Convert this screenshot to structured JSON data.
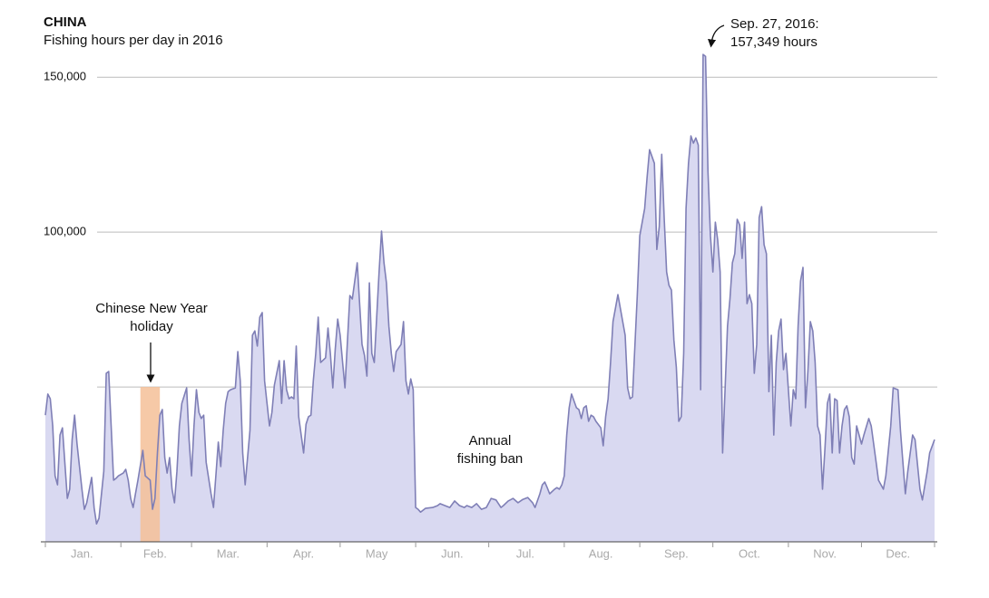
{
  "chart_data": {
    "type": "area",
    "title": "CHINA",
    "subtitle": "Fishing hours per day in 2016",
    "annotations": [
      {
        "lines": [
          "Sep. 27, 2016:",
          "157,349 hours"
        ]
      },
      {
        "lines": [
          "Chinese New Year",
          "holiday"
        ]
      },
      {
        "lines": [
          "Annual",
          "fishing ban"
        ]
      }
    ],
    "highlight": {
      "from": 40,
      "to": 48,
      "color": "#f4bf98"
    },
    "xlim": [
      1,
      366
    ],
    "xticks": [
      {
        "value": 16,
        "label": "Jan."
      },
      {
        "value": 46,
        "label": "Feb."
      },
      {
        "value": 76,
        "label": "Mar."
      },
      {
        "value": 107,
        "label": "Apr."
      },
      {
        "value": 137,
        "label": "May"
      },
      {
        "value": 168,
        "label": "Jun."
      },
      {
        "value": 198,
        "label": "Jul."
      },
      {
        "value": 229,
        "label": "Aug."
      },
      {
        "value": 260,
        "label": "Sep."
      },
      {
        "value": 290,
        "label": "Oct."
      },
      {
        "value": 321,
        "label": "Nov."
      },
      {
        "value": 351,
        "label": "Dec."
      }
    ],
    "minor_xticks": [
      1,
      32,
      61,
      92,
      122,
      153,
      183,
      214,
      245,
      275,
      306,
      336,
      366
    ],
    "ylim": [
      0,
      160000
    ],
    "yticks": [
      {
        "value": 100000,
        "label": "100,000"
      },
      {
        "value": 150000,
        "label": "150,000"
      }
    ],
    "gridlines": [
      50000,
      100000,
      150000
    ],
    "grid": true,
    "x": [
      1,
      2,
      3,
      4,
      5,
      6,
      7,
      8,
      10,
      11,
      12,
      13,
      14,
      16,
      17,
      18,
      20,
      21,
      22,
      23,
      25,
      26,
      27,
      28,
      29,
      30,
      31,
      33,
      34,
      35,
      36,
      37,
      38,
      39,
      41,
      42,
      44,
      45,
      46,
      47,
      48,
      49,
      50,
      51,
      52,
      53,
      54,
      55,
      56,
      57,
      59,
      60,
      61,
      62,
      63,
      64,
      65,
      66,
      67,
      69,
      70,
      71,
      72,
      73,
      74,
      75,
      76,
      77,
      79,
      80,
      81,
      82,
      83,
      85,
      86,
      87,
      88,
      89,
      90,
      91,
      92,
      93,
      94,
      95,
      97,
      98,
      99,
      100,
      101,
      102,
      103,
      104,
      105,
      107,
      108,
      109,
      110,
      111,
      112,
      113,
      114,
      116,
      117,
      118,
      119,
      120,
      121,
      122,
      123,
      124,
      126,
      127,
      129,
      131,
      132,
      133,
      134,
      135,
      136,
      138,
      139,
      140,
      141,
      142,
      143,
      144,
      145,
      147,
      148,
      149,
      150,
      151,
      152,
      153,
      154,
      155,
      157,
      160,
      162,
      163,
      165,
      167,
      169,
      171,
      173,
      174,
      176,
      178,
      180,
      182,
      184,
      186,
      188,
      189,
      191,
      193,
      195,
      197,
      199,
      201,
      202,
      204,
      205,
      206,
      207,
      208,
      210,
      211,
      212,
      213,
      214,
      215,
      216,
      217,
      219,
      220,
      221,
      222,
      223,
      224,
      225,
      226,
      227,
      229,
      230,
      231,
      232,
      233,
      234,
      235,
      236,
      238,
      239,
      240,
      241,
      242,
      243,
      244,
      245,
      247,
      248,
      249,
      251,
      252,
      253,
      254,
      255,
      256,
      257,
      258,
      259,
      260,
      261,
      262,
      263,
      264,
      265,
      266,
      267,
      268,
      269,
      270,
      271,
      272,
      273,
      274,
      275,
      276,
      277,
      278,
      279,
      280,
      281,
      282,
      283,
      284,
      285,
      286,
      287,
      288,
      289,
      290,
      291,
      292,
      293,
      294,
      295,
      296,
      297,
      298,
      299,
      300,
      301,
      302,
      303,
      304,
      305,
      306,
      307,
      308,
      309,
      310,
      311,
      312,
      313,
      314,
      315,
      316,
      317,
      318,
      319,
      320,
      321,
      322,
      323,
      324,
      325,
      326,
      327,
      328,
      329,
      330,
      331,
      332,
      333,
      334,
      336,
      337,
      339,
      340,
      342,
      343,
      345,
      346,
      348,
      349,
      351,
      352,
      354,
      355,
      357,
      358,
      360,
      361,
      363,
      364,
      366
    ],
    "series": [
      {
        "name": "Fishing hours",
        "color": "#7f7fb6",
        "fill": "#d9d9f1",
        "values": [
          40900,
          47700,
          46200,
          37400,
          21300,
          18400,
          34500,
          36800,
          14000,
          17000,
          33000,
          40900,
          31600,
          17000,
          10500,
          12600,
          20800,
          11100,
          5800,
          7600,
          22800,
          54400,
          55000,
          37400,
          19900,
          20500,
          21300,
          22200,
          23400,
          19900,
          14000,
          11100,
          15500,
          19900,
          29500,
          21300,
          19900,
          10500,
          14000,
          28700,
          40900,
          42700,
          27200,
          22200,
          27200,
          17000,
          12600,
          22800,
          37400,
          44700,
          49700,
          33000,
          21300,
          37400,
          49100,
          41800,
          39800,
          40900,
          25700,
          15500,
          11100,
          21300,
          32200,
          24300,
          36000,
          44700,
          48500,
          49100,
          49700,
          61400,
          52000,
          28700,
          18400,
          36000,
          66700,
          68100,
          63200,
          72500,
          74000,
          52000,
          44700,
          37400,
          41800,
          50600,
          58500,
          44700,
          58500,
          49100,
          46200,
          46800,
          46200,
          63200,
          40400,
          28700,
          38000,
          40400,
          40900,
          52000,
          60800,
          72500,
          57900,
          59400,
          69000,
          60800,
          49700,
          62300,
          71900,
          66700,
          57900,
          49700,
          79500,
          78400,
          90100,
          63700,
          60200,
          53500,
          83600,
          60800,
          57900,
          87100,
          100300,
          90100,
          83600,
          69600,
          60800,
          55000,
          61400,
          63700,
          71100,
          52000,
          47700,
          52600,
          49100,
          11100,
          10500,
          9600,
          10800,
          11100,
          11700,
          12300,
          11700,
          11100,
          13200,
          11700,
          11100,
          11700,
          11100,
          12300,
          10500,
          11100,
          14000,
          13500,
          11100,
          11700,
          13200,
          14000,
          12600,
          13700,
          14300,
          12600,
          11100,
          15500,
          18400,
          19300,
          17500,
          15500,
          17000,
          17500,
          17000,
          18400,
          21300,
          34500,
          43300,
          47700,
          43300,
          42700,
          39800,
          43300,
          43900,
          38900,
          40900,
          40400,
          38900,
          36800,
          31000,
          40400,
          46200,
          57900,
          71100,
          75400,
          79800,
          71100,
          66700,
          49700,
          46200,
          46800,
          63700,
          79800,
          98800,
          107600,
          117800,
          126600,
          122200,
          94400,
          101800,
          125100,
          104700,
          87100,
          82800,
          81300,
          65200,
          56400,
          38900,
          40400,
          60800,
          107600,
          122200,
          131000,
          128700,
          130400,
          128100,
          49100,
          157349,
          156700,
          119300,
          98800,
          87100,
          103200,
          97400,
          87100,
          28700,
          49100,
          69600,
          78400,
          90100,
          93000,
          104100,
          102300,
          91500,
          103200,
          76900,
          79800,
          76900,
          54400,
          63700,
          104700,
          108200,
          95900,
          93000,
          48500,
          66700,
          34500,
          57900,
          68100,
          71900,
          55600,
          60800,
          49100,
          37400,
          49100,
          46200,
          69600,
          84200,
          88600,
          43300,
          55000,
          71100,
          68100,
          57900,
          37400,
          34500,
          17000,
          30100,
          44700,
          47700,
          28700,
          46200,
          45600,
          28700,
          37400,
          42700,
          43900,
          40400,
          27200,
          25100,
          37400,
          31600,
          34500,
          39800,
          37400,
          25700,
          19900,
          17000,
          21300,
          37400,
          49700,
          49100,
          36000,
          15500,
          22800,
          34500,
          33000,
          17000,
          13500,
          22800,
          28700,
          33000
        ]
      }
    ]
  }
}
